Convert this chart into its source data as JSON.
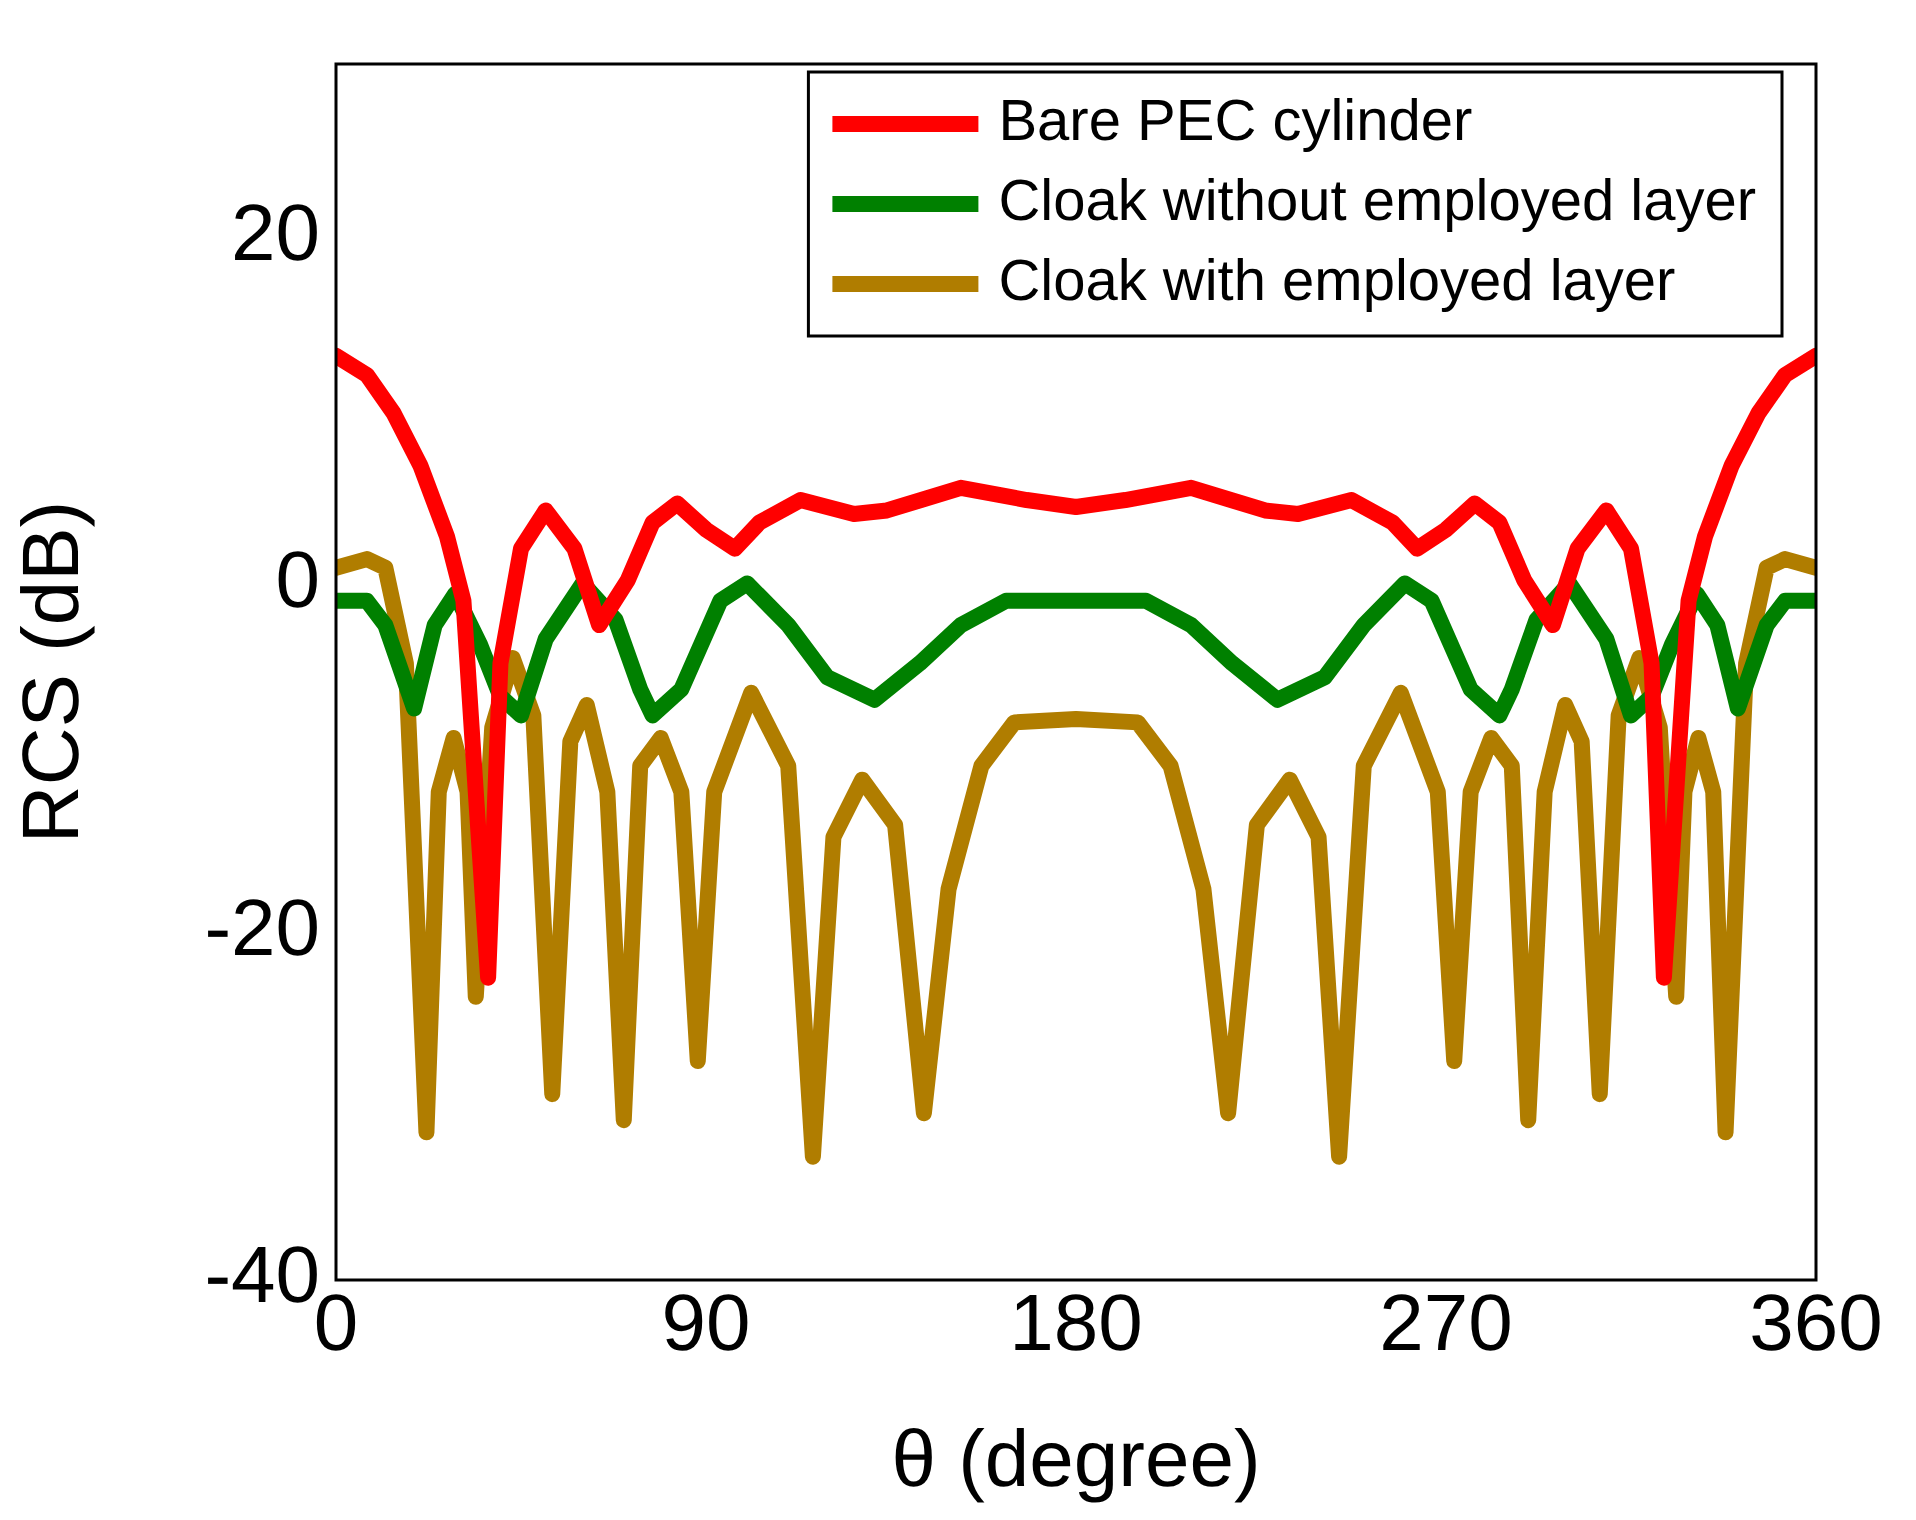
{
  "chart_data": {
    "type": "line",
    "xlabel": "θ (degree)",
    "ylabel": "RCS (dB)",
    "xlim": [
      0,
      360
    ],
    "xticks": [
      0,
      90,
      180,
      270,
      360
    ],
    "ylim": [
      -40,
      30
    ],
    "yticks": [
      -40,
      -20,
      0,
      20
    ],
    "grid": false,
    "legend": "top right",
    "marker": "none",
    "line_style": "solid",
    "series": [
      {
        "name": "Bare PEC cylinder",
        "color": "#ff0000",
        "x": [
          0,
          7.5,
          14,
          20.5,
          27,
          31,
          34,
          37,
          40,
          45,
          51,
          58,
          64,
          71,
          77,
          83,
          90,
          97,
          103,
          113,
          126,
          134,
          152,
          168,
          180,
          192,
          208,
          226,
          234,
          247,
          257,
          263,
          270,
          277,
          283,
          289,
          296,
          302,
          309,
          315,
          320,
          323,
          326,
          329,
          333,
          339.5,
          346,
          352.5,
          360
        ],
        "values": [
          13.2,
          12.1,
          9.9,
          6.9,
          2.8,
          -0.9,
          -11.9,
          -22.6,
          -4.5,
          2.1,
          4.3,
          2.1,
          -2.3,
          0.3,
          3.6,
          4.7,
          3.2,
          2.1,
          3.6,
          4.9,
          4.1,
          4.3,
          5.6,
          4.9,
          4.5,
          4.9,
          5.6,
          4.3,
          4.1,
          4.9,
          3.6,
          2.1,
          3.2,
          4.7,
          3.6,
          0.3,
          -2.3,
          2.1,
          4.3,
          2.1,
          -4.5,
          -22.6,
          -11.9,
          -0.9,
          2.8,
          6.9,
          9.9,
          12.1,
          13.2
        ]
      },
      {
        "name": "Cloak without employed layer",
        "color": "#008000",
        "x": [
          0,
          7.5,
          12,
          19,
          24,
          29,
          35,
          40,
          45,
          51,
          60,
          68,
          74,
          77,
          84,
          93.5,
          100,
          110,
          119.5,
          131,
          142,
          152,
          163,
          180,
          197,
          208,
          218,
          229,
          240.5,
          250,
          260,
          266.5,
          276,
          283,
          286,
          292,
          300,
          309,
          315,
          320,
          325,
          331,
          336,
          341,
          348,
          352.5,
          360
        ],
        "values": [
          -0.9,
          -0.9,
          -2.3,
          -7.1,
          -2.3,
          -0.5,
          -3.4,
          -6.4,
          -7.5,
          -3.1,
          0.1,
          -2.0,
          -6.0,
          -7.5,
          -6.0,
          -0.9,
          0.1,
          -2.3,
          -5.3,
          -6.6,
          -4.5,
          -2.3,
          -0.9,
          -0.9,
          -0.9,
          -2.3,
          -4.5,
          -6.6,
          -5.3,
          -2.3,
          0.1,
          -0.9,
          -6.0,
          -7.5,
          -6.0,
          -2.0,
          0.1,
          -3.1,
          -7.5,
          -6.4,
          -3.4,
          -0.5,
          -2.3,
          -7.1,
          -2.3,
          -0.9,
          -0.9
        ]
      },
      {
        "name": "Cloak with employed layer",
        "color": "#b07d00",
        "x": [
          0,
          7.5,
          12,
          17,
          22,
          25,
          28.6,
          32,
          34,
          38,
          43,
          48,
          52.6,
          57,
          61,
          66,
          70,
          74,
          79,
          84,
          88,
          92,
          101,
          110,
          116,
          121,
          128,
          136,
          143,
          149,
          157,
          165,
          180,
          195,
          203,
          211,
          217,
          224,
          232,
          239,
          244,
          250,
          259,
          268,
          272,
          276,
          281,
          286,
          290,
          294,
          299,
          303,
          307.4,
          312,
          317,
          322,
          326,
          328,
          331.4,
          335,
          338,
          343,
          348,
          352.5,
          360
        ],
        "values": [
          1.0,
          1.5,
          1.0,
          -4.5,
          -31.5,
          -11.9,
          -8.8,
          -11.9,
          -23.7,
          -8.2,
          -4.2,
          -7.5,
          -29.3,
          -9.0,
          -6.9,
          -11.9,
          -30.8,
          -10.4,
          -8.8,
          -11.9,
          -27.4,
          -11.9,
          -6.2,
          -10.4,
          -32.9,
          -14.5,
          -11.2,
          -13.8,
          -30.4,
          -17.5,
          -10.4,
          -7.9,
          -7.7,
          -7.9,
          -10.4,
          -17.5,
          -30.4,
          -13.8,
          -11.2,
          -14.5,
          -32.9,
          -10.4,
          -6.2,
          -11.9,
          -27.4,
          -11.9,
          -8.8,
          -10.4,
          -30.8,
          -11.9,
          -6.9,
          -9.0,
          -29.3,
          -7.5,
          -4.2,
          -8.2,
          -23.7,
          -11.9,
          -8.8,
          -11.9,
          -31.5,
          -4.5,
          1.0,
          1.5,
          1.0
        ]
      }
    ]
  }
}
